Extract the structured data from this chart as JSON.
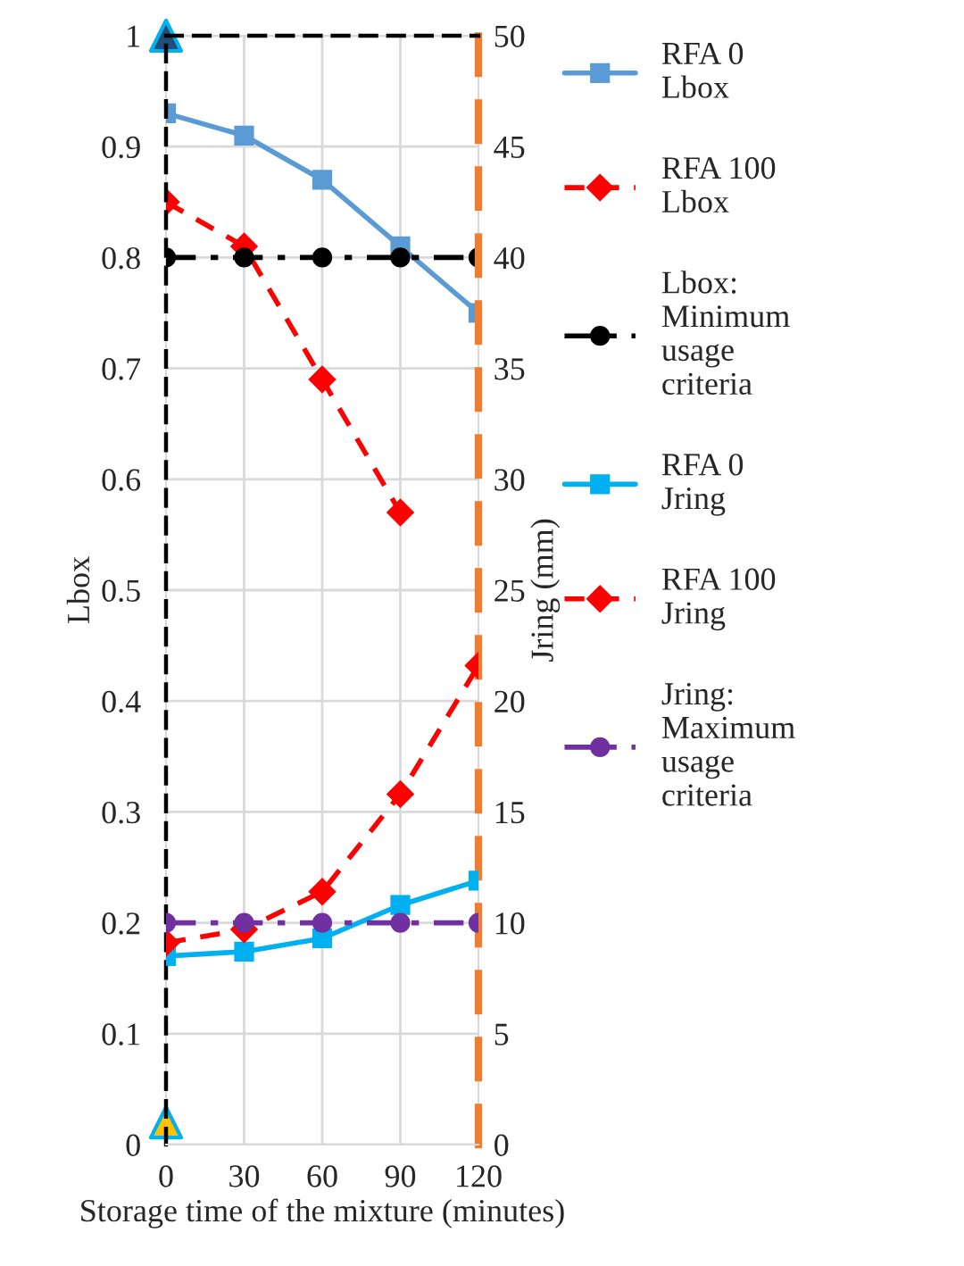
{
  "chart_data": {
    "type": "line",
    "xlabel": "Storage time of the mixture (minutes)",
    "ylabel": "Lbox",
    "y2label": "Jring (mm)",
    "categories": [
      "0",
      "30",
      "60",
      "90",
      "120"
    ],
    "series": [
      {
        "name": "RFA 0\nLbox",
        "color": "#5b9bd5",
        "marker": "square",
        "line_style": "solid",
        "values": [
          0.93,
          0.91,
          0.87,
          0.81,
          0.75
        ]
      },
      {
        "name": "RFA 100\nLbox",
        "color": "#ff0000",
        "marker": "diamond",
        "line_style": "dashed",
        "values": [
          0.85,
          0.81,
          0.69,
          0.57,
          null
        ]
      },
      {
        "name": "Lbox:\nMinimum\nusage\ncriteria",
        "color": "#000000",
        "marker": "circle",
        "line_style": "dashdot",
        "values": [
          0.8,
          0.8,
          0.8,
          0.8,
          0.8
        ]
      },
      {
        "name": "RFA 0\nJring",
        "color": "#00b0f0",
        "marker": "square",
        "line_style": "solid",
        "axis": "y2",
        "values": [
          8.5,
          8.7,
          9.3,
          10.8,
          11.9
        ]
      },
      {
        "name": "RFA 100\nJring",
        "color": "#ff0000",
        "marker": "diamond",
        "line_style": "dashed",
        "axis": "y2",
        "values": [
          9.1,
          9.7,
          11.4,
          15.8,
          21.6
        ]
      },
      {
        "name": "Jring:\nMaximum\nusage\ncriteria",
        "color": "#7030a0",
        "marker": "circle",
        "line_style": "dashdot",
        "axis": "y2",
        "values": [
          10,
          10,
          10,
          10,
          10
        ]
      },
      {
        "type": "scatter",
        "color": "#1f4e79",
        "marker": "triangle",
        "x": [
          "0"
        ],
        "values": [
          1
        ]
      },
      {
        "type": "scatter",
        "color": "#ffc000",
        "marker": "triangle",
        "x": [
          "0"
        ],
        "values": [
          0.02
        ]
      }
    ],
    "ylim": [
      0,
      1
    ],
    "yticks": [
      {
        "value": 0,
        "label": "0"
      },
      0.1,
      0.2,
      0.3,
      0.4,
      0.5,
      0.6,
      0.7,
      0.8,
      0.9,
      {
        "value": 1,
        "label": "1"
      }
    ],
    "y2lim": [
      0,
      50
    ],
    "y2ticks": [
      0,
      5,
      10,
      15,
      20,
      25,
      30,
      35,
      40,
      45,
      50
    ],
    "grid": true,
    "legend": "right"
  }
}
